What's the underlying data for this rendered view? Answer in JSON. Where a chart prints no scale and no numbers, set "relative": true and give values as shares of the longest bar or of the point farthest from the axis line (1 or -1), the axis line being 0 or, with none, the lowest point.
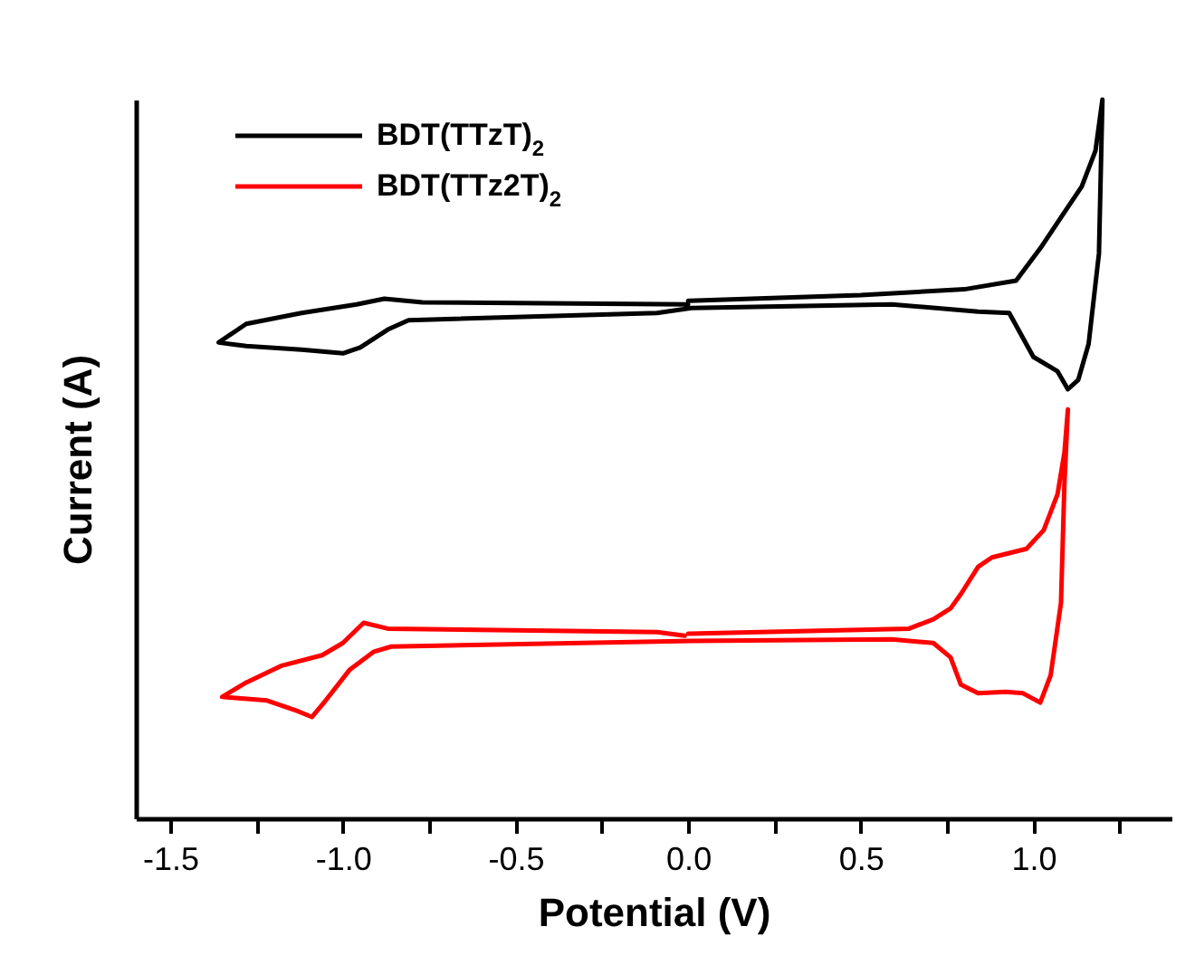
{
  "chart_data": {
    "type": "line",
    "xlabel": "Potential (V)",
    "ylabel": "Current (A)",
    "relative": true,
    "legend": "top left",
    "line_style": "solid",
    "xlim": [
      -1.6,
      1.4
    ],
    "xticks": [
      -1.5,
      {
        "value": -1.25,
        "label": null
      },
      {
        "value": -1.0,
        "label": "-1.0"
      },
      {
        "value": -0.75,
        "label": null
      },
      -0.5,
      {
        "value": -0.25,
        "label": null
      },
      {
        "value": 0,
        "label": "0.0"
      },
      {
        "value": 0.25,
        "label": null
      },
      0.5,
      {
        "value": 0.75,
        "label": null
      },
      {
        "value": 1.0,
        "label": "1.0"
      },
      {
        "value": 1.25,
        "label": null
      }
    ],
    "series": [
      {
        "name": "BDT(TTzT)$_{2}$",
        "color": "#000000",
        "x": [
          0.0,
          0.5,
          0.8,
          0.95,
          1.02,
          1.08,
          1.14,
          1.18,
          1.2,
          1.19,
          1.16,
          1.13,
          1.1,
          1.07,
          1.0,
          0.93,
          0.84,
          0.59,
          0.01,
          -0.09,
          -0.81,
          -0.87,
          -0.95,
          -1.0,
          -1.12,
          -1.28,
          -1.36,
          -1.28,
          -1.12,
          -0.96,
          -0.88,
          -0.77,
          0.0
        ],
        "values": [
          0.72,
          0.728,
          0.736,
          0.748,
          0.793,
          0.836,
          0.879,
          0.929,
          1.0,
          0.786,
          0.66,
          0.61,
          0.597,
          0.622,
          0.642,
          0.703,
          0.705,
          0.715,
          0.71,
          0.703,
          0.693,
          0.68,
          0.655,
          0.647,
          0.652,
          0.657,
          0.662,
          0.688,
          0.703,
          0.715,
          0.723,
          0.718,
          0.715
        ]
      },
      {
        "name": "BDT(TTz2T)$_{2}$",
        "color": "#ff0000",
        "x": [
          0.0,
          0.64,
          0.71,
          0.76,
          0.79,
          0.84,
          0.88,
          0.98,
          1.03,
          1.07,
          1.09,
          1.1,
          1.09,
          1.08,
          1.05,
          1.02,
          0.97,
          0.92,
          0.84,
          0.79,
          0.76,
          0.71,
          0.59,
          0.01,
          -0.86,
          -0.91,
          -0.98,
          -1.05,
          -1.09,
          -1.13,
          -1.22,
          -1.35,
          -1.28,
          -1.18,
          -1.06,
          -1.0,
          -0.94,
          -0.87,
          -0.09,
          -0.01
        ],
        "values": [
          0.257,
          0.264,
          0.277,
          0.292,
          0.312,
          0.35,
          0.363,
          0.375,
          0.401,
          0.451,
          0.509,
          0.569,
          0.466,
          0.3,
          0.199,
          0.161,
          0.174,
          0.176,
          0.174,
          0.186,
          0.224,
          0.244,
          0.249,
          0.247,
          0.239,
          0.232,
          0.207,
          0.164,
          0.141,
          0.149,
          0.164,
          0.169,
          0.189,
          0.212,
          0.227,
          0.244,
          0.272,
          0.264,
          0.259,
          0.254
        ]
      }
    ]
  }
}
